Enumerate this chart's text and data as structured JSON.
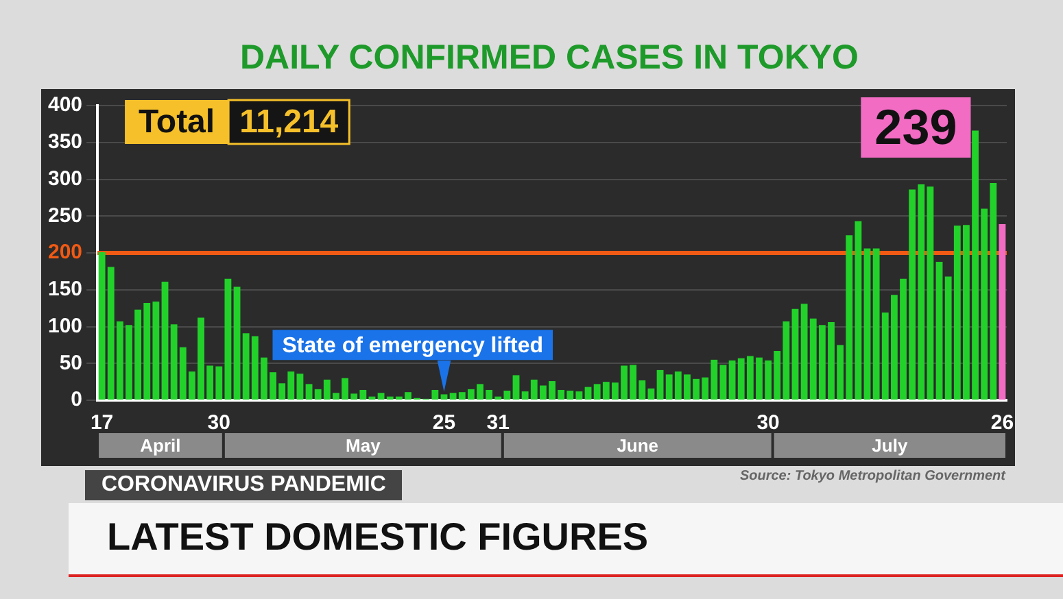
{
  "chart_data": {
    "type": "bar",
    "title": "DAILY CONFIRMED CASES IN TOKYO",
    "categories": [
      "17",
      null,
      null,
      null,
      null,
      null,
      null,
      null,
      null,
      null,
      null,
      null,
      null,
      "30",
      null,
      null,
      null,
      null,
      null,
      null,
      null,
      null,
      null,
      null,
      null,
      null,
      null,
      null,
      null,
      null,
      null,
      null,
      null,
      null,
      null,
      null,
      null,
      null,
      "25",
      null,
      null,
      null,
      null,
      null,
      "31",
      null,
      null,
      null,
      null,
      null,
      null,
      null,
      null,
      null,
      null,
      null,
      null,
      null,
      null,
      null,
      null,
      null,
      null,
      null,
      null,
      null,
      null,
      null,
      null,
      null,
      null,
      null,
      null,
      null,
      "30",
      null,
      null,
      null,
      null,
      null,
      null,
      null,
      null,
      null,
      null,
      null,
      null,
      null,
      null,
      null,
      null,
      null,
      null,
      null,
      null,
      null,
      null,
      null,
      null,
      null,
      "26"
    ],
    "values": [
      201,
      181,
      107,
      102,
      123,
      132,
      134,
      161,
      103,
      72,
      39,
      112,
      47,
      46,
      165,
      154,
      91,
      87,
      58,
      38,
      23,
      39,
      36,
      22,
      15,
      28,
      10,
      30,
      9,
      14,
      5,
      10,
      5,
      5,
      11,
      3,
      2,
      14,
      8,
      10,
      11,
      15,
      22,
      14,
      5,
      13,
      34,
      12,
      28,
      20,
      26,
      14,
      13,
      12,
      18,
      22,
      25,
      24,
      47,
      48,
      27,
      16,
      41,
      35,
      39,
      35,
      29,
      31,
      55,
      48,
      54,
      57,
      60,
      58,
      54,
      67,
      107,
      124,
      131,
      111,
      102,
      106,
      75,
      224,
      243,
      206,
      206,
      119,
      143,
      165,
      286,
      293,
      290,
      188,
      168,
      237,
      238,
      366,
      260,
      295,
      239
    ],
    "colors": [
      "#22d12a",
      "#22d12a",
      "#22d12a",
      "#22d12a",
      "#22d12a",
      "#22d12a",
      "#22d12a",
      "#22d12a",
      "#22d12a",
      "#22d12a",
      "#22d12a",
      "#22d12a",
      "#22d12a",
      "#22d12a",
      "#22d12a",
      "#22d12a",
      "#22d12a",
      "#22d12a",
      "#22d12a",
      "#22d12a",
      "#22d12a",
      "#22d12a",
      "#22d12a",
      "#22d12a",
      "#22d12a",
      "#22d12a",
      "#22d12a",
      "#22d12a",
      "#22d12a",
      "#22d12a",
      "#22d12a",
      "#22d12a",
      "#22d12a",
      "#22d12a",
      "#22d12a",
      "#22d12a",
      "#22d12a",
      "#22d12a",
      "#22d12a",
      "#22d12a",
      "#22d12a",
      "#22d12a",
      "#22d12a",
      "#22d12a",
      "#22d12a",
      "#22d12a",
      "#22d12a",
      "#22d12a",
      "#22d12a",
      "#22d12a",
      "#22d12a",
      "#22d12a",
      "#22d12a",
      "#22d12a",
      "#22d12a",
      "#22d12a",
      "#22d12a",
      "#22d12a",
      "#22d12a",
      "#22d12a",
      "#22d12a",
      "#22d12a",
      "#22d12a",
      "#22d12a",
      "#22d12a",
      "#22d12a",
      "#22d12a",
      "#22d12a",
      "#22d12a",
      "#22d12a",
      "#22d12a",
      "#22d12a",
      "#22d12a",
      "#22d12a",
      "#22d12a",
      "#22d12a",
      "#22d12a",
      "#22d12a",
      "#22d12a",
      "#22d12a",
      "#22d12a",
      "#22d12a",
      "#22d12a",
      "#22d12a",
      "#22d12a",
      "#22d12a",
      "#22d12a",
      "#22d12a",
      "#22d12a",
      "#22d12a",
      "#22d12a",
      "#22d12a",
      "#22d12a",
      "#22d12a",
      "#22d12a",
      "#22d12a",
      "#22d12a",
      "#22d12a",
      "#22d12a",
      "#22d12a",
      "#f26cc4"
    ],
    "ylim": [
      0,
      400
    ],
    "yticks": [
      0,
      50,
      100,
      150,
      200,
      250,
      300,
      350,
      400
    ],
    "grid": "y",
    "ref_lines": [
      {
        "axis": "y",
        "value": 200,
        "color": "#f05a14"
      }
    ],
    "annotations": [
      "Total",
      "11,214",
      "State of emergency lifted",
      "April",
      "May",
      "June",
      "July",
      "Source: Tokyo Metropolitan Government",
      "CORONAVIRUS PANDEMIC",
      "LATEST DOMESTIC FIGURES",
      "239"
    ]
  }
}
